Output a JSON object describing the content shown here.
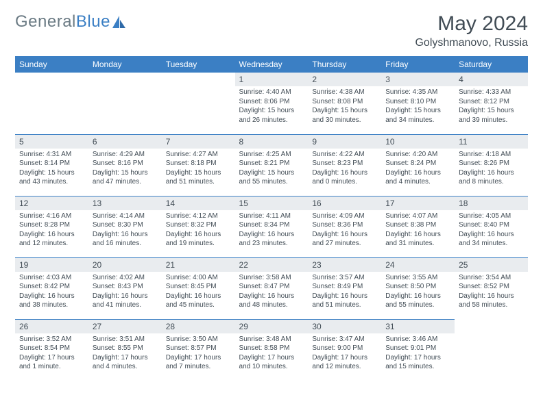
{
  "brand": {
    "part1": "General",
    "part2": "Blue"
  },
  "title": "May 2024",
  "location": "Golyshmanovo, Russia",
  "theme": {
    "header_bg": "#3b7fc4",
    "header_fg": "#ffffff",
    "daynum_bg": "#e9ecef",
    "text_color": "#414c55",
    "rule_color": "#3b7fc4",
    "page_bg": "#ffffff",
    "title_fontsize": 30,
    "location_fontsize": 16,
    "header_fontsize": 12,
    "daynum_fontsize": 12,
    "body_fontsize": 10
  },
  "day_names": [
    "Sunday",
    "Monday",
    "Tuesday",
    "Wednesday",
    "Thursday",
    "Friday",
    "Saturday"
  ],
  "weeks": [
    [
      null,
      null,
      null,
      {
        "n": "1",
        "sunrise": "Sunrise: 4:40 AM",
        "sunset": "Sunset: 8:06 PM",
        "day1": "Daylight: 15 hours",
        "day2": "and 26 minutes."
      },
      {
        "n": "2",
        "sunrise": "Sunrise: 4:38 AM",
        "sunset": "Sunset: 8:08 PM",
        "day1": "Daylight: 15 hours",
        "day2": "and 30 minutes."
      },
      {
        "n": "3",
        "sunrise": "Sunrise: 4:35 AM",
        "sunset": "Sunset: 8:10 PM",
        "day1": "Daylight: 15 hours",
        "day2": "and 34 minutes."
      },
      {
        "n": "4",
        "sunrise": "Sunrise: 4:33 AM",
        "sunset": "Sunset: 8:12 PM",
        "day1": "Daylight: 15 hours",
        "day2": "and 39 minutes."
      }
    ],
    [
      {
        "n": "5",
        "sunrise": "Sunrise: 4:31 AM",
        "sunset": "Sunset: 8:14 PM",
        "day1": "Daylight: 15 hours",
        "day2": "and 43 minutes."
      },
      {
        "n": "6",
        "sunrise": "Sunrise: 4:29 AM",
        "sunset": "Sunset: 8:16 PM",
        "day1": "Daylight: 15 hours",
        "day2": "and 47 minutes."
      },
      {
        "n": "7",
        "sunrise": "Sunrise: 4:27 AM",
        "sunset": "Sunset: 8:18 PM",
        "day1": "Daylight: 15 hours",
        "day2": "and 51 minutes."
      },
      {
        "n": "8",
        "sunrise": "Sunrise: 4:25 AM",
        "sunset": "Sunset: 8:21 PM",
        "day1": "Daylight: 15 hours",
        "day2": "and 55 minutes."
      },
      {
        "n": "9",
        "sunrise": "Sunrise: 4:22 AM",
        "sunset": "Sunset: 8:23 PM",
        "day1": "Daylight: 16 hours",
        "day2": "and 0 minutes."
      },
      {
        "n": "10",
        "sunrise": "Sunrise: 4:20 AM",
        "sunset": "Sunset: 8:24 PM",
        "day1": "Daylight: 16 hours",
        "day2": "and 4 minutes."
      },
      {
        "n": "11",
        "sunrise": "Sunrise: 4:18 AM",
        "sunset": "Sunset: 8:26 PM",
        "day1": "Daylight: 16 hours",
        "day2": "and 8 minutes."
      }
    ],
    [
      {
        "n": "12",
        "sunrise": "Sunrise: 4:16 AM",
        "sunset": "Sunset: 8:28 PM",
        "day1": "Daylight: 16 hours",
        "day2": "and 12 minutes."
      },
      {
        "n": "13",
        "sunrise": "Sunrise: 4:14 AM",
        "sunset": "Sunset: 8:30 PM",
        "day1": "Daylight: 16 hours",
        "day2": "and 16 minutes."
      },
      {
        "n": "14",
        "sunrise": "Sunrise: 4:12 AM",
        "sunset": "Sunset: 8:32 PM",
        "day1": "Daylight: 16 hours",
        "day2": "and 19 minutes."
      },
      {
        "n": "15",
        "sunrise": "Sunrise: 4:11 AM",
        "sunset": "Sunset: 8:34 PM",
        "day1": "Daylight: 16 hours",
        "day2": "and 23 minutes."
      },
      {
        "n": "16",
        "sunrise": "Sunrise: 4:09 AM",
        "sunset": "Sunset: 8:36 PM",
        "day1": "Daylight: 16 hours",
        "day2": "and 27 minutes."
      },
      {
        "n": "17",
        "sunrise": "Sunrise: 4:07 AM",
        "sunset": "Sunset: 8:38 PM",
        "day1": "Daylight: 16 hours",
        "day2": "and 31 minutes."
      },
      {
        "n": "18",
        "sunrise": "Sunrise: 4:05 AM",
        "sunset": "Sunset: 8:40 PM",
        "day1": "Daylight: 16 hours",
        "day2": "and 34 minutes."
      }
    ],
    [
      {
        "n": "19",
        "sunrise": "Sunrise: 4:03 AM",
        "sunset": "Sunset: 8:42 PM",
        "day1": "Daylight: 16 hours",
        "day2": "and 38 minutes."
      },
      {
        "n": "20",
        "sunrise": "Sunrise: 4:02 AM",
        "sunset": "Sunset: 8:43 PM",
        "day1": "Daylight: 16 hours",
        "day2": "and 41 minutes."
      },
      {
        "n": "21",
        "sunrise": "Sunrise: 4:00 AM",
        "sunset": "Sunset: 8:45 PM",
        "day1": "Daylight: 16 hours",
        "day2": "and 45 minutes."
      },
      {
        "n": "22",
        "sunrise": "Sunrise: 3:58 AM",
        "sunset": "Sunset: 8:47 PM",
        "day1": "Daylight: 16 hours",
        "day2": "and 48 minutes."
      },
      {
        "n": "23",
        "sunrise": "Sunrise: 3:57 AM",
        "sunset": "Sunset: 8:49 PM",
        "day1": "Daylight: 16 hours",
        "day2": "and 51 minutes."
      },
      {
        "n": "24",
        "sunrise": "Sunrise: 3:55 AM",
        "sunset": "Sunset: 8:50 PM",
        "day1": "Daylight: 16 hours",
        "day2": "and 55 minutes."
      },
      {
        "n": "25",
        "sunrise": "Sunrise: 3:54 AM",
        "sunset": "Sunset: 8:52 PM",
        "day1": "Daylight: 16 hours",
        "day2": "and 58 minutes."
      }
    ],
    [
      {
        "n": "26",
        "sunrise": "Sunrise: 3:52 AM",
        "sunset": "Sunset: 8:54 PM",
        "day1": "Daylight: 17 hours",
        "day2": "and 1 minute."
      },
      {
        "n": "27",
        "sunrise": "Sunrise: 3:51 AM",
        "sunset": "Sunset: 8:55 PM",
        "day1": "Daylight: 17 hours",
        "day2": "and 4 minutes."
      },
      {
        "n": "28",
        "sunrise": "Sunrise: 3:50 AM",
        "sunset": "Sunset: 8:57 PM",
        "day1": "Daylight: 17 hours",
        "day2": "and 7 minutes."
      },
      {
        "n": "29",
        "sunrise": "Sunrise: 3:48 AM",
        "sunset": "Sunset: 8:58 PM",
        "day1": "Daylight: 17 hours",
        "day2": "and 10 minutes."
      },
      {
        "n": "30",
        "sunrise": "Sunrise: 3:47 AM",
        "sunset": "Sunset: 9:00 PM",
        "day1": "Daylight: 17 hours",
        "day2": "and 12 minutes."
      },
      {
        "n": "31",
        "sunrise": "Sunrise: 3:46 AM",
        "sunset": "Sunset: 9:01 PM",
        "day1": "Daylight: 17 hours",
        "day2": "and 15 minutes."
      },
      null
    ]
  ]
}
